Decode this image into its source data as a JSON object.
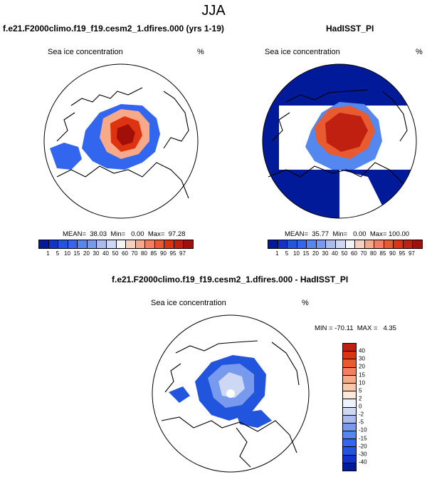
{
  "page": {
    "title": "JJA"
  },
  "colors": {
    "seq": [
      "#001a99",
      "#1133cc",
      "#2255dd",
      "#3366ee",
      "#5588ee",
      "#7799ee",
      "#aabbee",
      "#ccd8f4",
      "#f4f4f4",
      "#f8d0c0",
      "#f8aa88",
      "#f08060",
      "#e85a30",
      "#dd3311",
      "#c02010",
      "#a01008",
      "#780000"
    ],
    "diff": [
      "#001a99",
      "#1133cc",
      "#2255dd",
      "#3366ee",
      "#5588ee",
      "#7799ee",
      "#aabbee",
      "#ccd8f4",
      "#eef3fb",
      "#fde8dc",
      "#f8c8a8",
      "#f8aa88",
      "#f08060",
      "#e85a30",
      "#dd3311",
      "#c02010",
      "#900000"
    ],
    "land": "#ffffff",
    "ocean": "#ffffff"
  },
  "panels": {
    "model": {
      "title": "f.e21.F2000climo.f19_f19.cesm2_1.dfires.000 (yrs 1-19)",
      "variable": "Sea ice concentration",
      "units": "%",
      "stats": "MEAN=  38.03  Min=   0.00  Max=  97.28",
      "icon": "arctic-map"
    },
    "obs": {
      "title": "HadISST_PI",
      "variable": "Sea ice concentration",
      "units": "%",
      "stats": "MEAN=  35.77  Min=   0.00  Max= 100.00",
      "icon": "arctic-map"
    },
    "diff": {
      "title": "f.e21.F2000climo.f19_f19.cesm2_1.dfires.000 - HadISST_PI",
      "variable": "Sea ice concentration",
      "units": "%",
      "stats": "MIN = -70.11  MAX =   4.35",
      "icon": "arctic-map"
    }
  },
  "colorbar_seq": {
    "ticks": [
      "1",
      "5",
      "10",
      "15",
      "20",
      "30",
      "40",
      "50",
      "60",
      "70",
      "80",
      "85",
      "90",
      "95",
      "97"
    ]
  },
  "colorbar_diff": {
    "ticks": [
      "40",
      "30",
      "20",
      "15",
      "10",
      "5",
      "2",
      "0",
      "-2",
      "-5",
      "-10",
      "-15",
      "-20",
      "-30",
      "-40"
    ]
  },
  "chart_data": [
    {
      "type": "heatmap",
      "title": "f.e21.F2000climo.f19_f19.cesm2_1.dfires.000 (yrs 1-19)",
      "variable": "Sea ice concentration",
      "units": "%",
      "season": "JJA",
      "mean": 38.03,
      "min": 0.0,
      "max": 97.28,
      "levels": [
        1,
        5,
        10,
        15,
        20,
        30,
        40,
        50,
        60,
        70,
        80,
        85,
        90,
        95,
        97
      ]
    },
    {
      "type": "heatmap",
      "title": "HadISST_PI",
      "variable": "Sea ice concentration",
      "units": "%",
      "season": "JJA",
      "mean": 35.77,
      "min": 0.0,
      "max": 100.0,
      "levels": [
        1,
        5,
        10,
        15,
        20,
        30,
        40,
        50,
        60,
        70,
        80,
        85,
        90,
        95,
        97
      ]
    },
    {
      "type": "heatmap",
      "title": "f.e21.F2000climo.f19_f19.cesm2_1.dfires.000 - HadISST_PI",
      "variable": "Sea ice concentration",
      "units": "%",
      "season": "JJA",
      "min": -70.11,
      "max": 4.35,
      "levels": [
        -40,
        -30,
        -20,
        -15,
        -10,
        -5,
        -2,
        0,
        2,
        5,
        10,
        15,
        20,
        30,
        40
      ]
    }
  ]
}
